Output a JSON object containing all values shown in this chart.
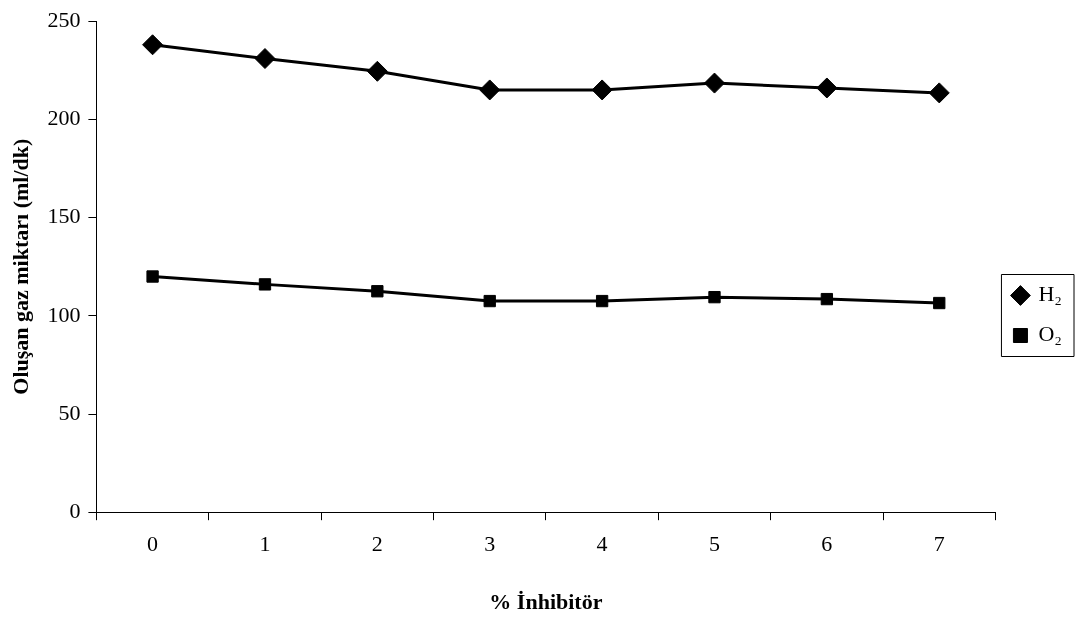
{
  "chart_data": {
    "type": "line",
    "xlabel": "% İnhibitör",
    "ylabel": "Oluşan gaz miktarı (ml/dk)",
    "categories": [
      "0",
      "1",
      "2",
      "3",
      "4",
      "5",
      "6",
      "7"
    ],
    "series": [
      {
        "name": "H₂",
        "color": "#000000",
        "marker": "diamond",
        "values": [
          238,
          231,
          224.5,
          215,
          215,
          218.5,
          216,
          213.5
        ]
      },
      {
        "name": "O₂",
        "color": "#000000",
        "marker": "square",
        "values": [
          120,
          116,
          112.5,
          107.5,
          107.5,
          109.5,
          108.5,
          106.5
        ]
      }
    ],
    "ylim": [
      0,
      250
    ],
    "yticks": [
      0,
      50,
      100,
      150,
      200,
      250
    ],
    "grid": false,
    "legend": "right",
    "line_style": "solid"
  }
}
